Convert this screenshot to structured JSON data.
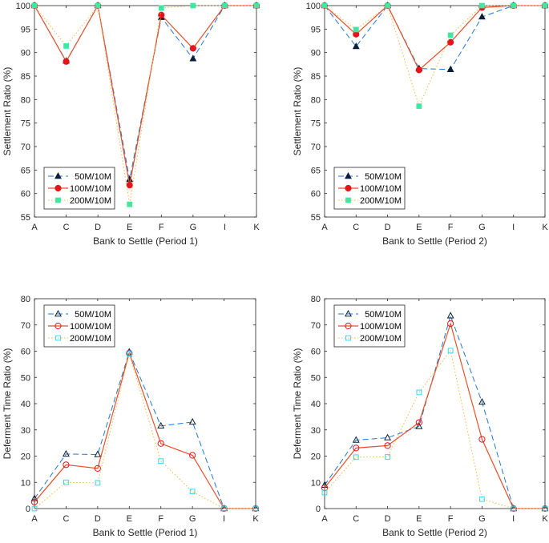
{
  "colors": {
    "series_50M": "#1f77d4",
    "series_50M_marker": "#0b1f3a",
    "series_100M": "#e8502a",
    "series_100M_marker": "#e4141b",
    "series_200M": "#f0b84a",
    "series_200M_marker": "#3ee8a0",
    "series_200M_marker_open": "#35d8e8",
    "axis": "#262626"
  },
  "chart_data": [
    {
      "type": "line",
      "id": "settlement-period-1",
      "categories": [
        "A",
        "C",
        "D",
        "E",
        "F",
        "G",
        "I",
        "K"
      ],
      "xlabel": "Bank to Settle (Period 1)",
      "ylabel": "Settlement Ratio (%)",
      "ylim": [
        55,
        100
      ],
      "yticks": [
        55,
        60,
        65,
        70,
        75,
        80,
        85,
        90,
        95,
        100
      ],
      "marker_fill": "filled",
      "legend_position": "lower-left",
      "series": [
        {
          "name": "50M/10M",
          "legend_label": " 50M/10M",
          "values": [
            100,
            88.2,
            100,
            63.0,
            97.5,
            88.7,
            100,
            100
          ]
        },
        {
          "name": "100M/10M",
          "legend_label": "100M/10M",
          "values": [
            100,
            88.1,
            100,
            61.8,
            98.0,
            90.9,
            100,
            100
          ]
        },
        {
          "name": "200M/10M",
          "legend_label": "200M/10M",
          "values": [
            100,
            91.4,
            100,
            57.7,
            99.5,
            100,
            100,
            100
          ]
        }
      ]
    },
    {
      "type": "line",
      "id": "settlement-period-2",
      "categories": [
        "A",
        "C",
        "D",
        "E",
        "F",
        "G",
        "I",
        "K"
      ],
      "xlabel": "Bank to Settle (Period 2)",
      "ylabel": "Settlement Ratio (%)",
      "ylim": [
        55,
        100
      ],
      "yticks": [
        55,
        60,
        65,
        70,
        75,
        80,
        85,
        90,
        95,
        100
      ],
      "marker_fill": "filled",
      "legend_position": "lower-left",
      "series": [
        {
          "name": "50M/10M",
          "legend_label": " 50M/10M",
          "values": [
            100,
            91.3,
            100,
            86.6,
            86.4,
            97.6,
            100,
            100
          ]
        },
        {
          "name": "100M/10M",
          "legend_label": "100M/10M",
          "values": [
            100,
            93.9,
            100,
            86.3,
            92.2,
            99.6,
            100,
            100
          ]
        },
        {
          "name": "200M/10M",
          "legend_label": "200M/10M",
          "values": [
            100,
            94.9,
            100,
            78.6,
            93.7,
            100,
            100,
            100
          ]
        }
      ]
    },
    {
      "type": "line",
      "id": "deferment-period-1",
      "categories": [
        "A",
        "C",
        "D",
        "E",
        "F",
        "G",
        "I",
        "K"
      ],
      "xlabel": "Bank to Settle (Period 1)",
      "ylabel": "Deferment Time Ratio (%)",
      "ylim": [
        0,
        80
      ],
      "yticks": [
        0,
        10,
        20,
        30,
        40,
        50,
        60,
        70,
        80
      ],
      "marker_fill": "open",
      "legend_position": "upper-left",
      "series": [
        {
          "name": "50M/10M",
          "legend_label": " 50M/10M",
          "values": [
            3.8,
            20.8,
            20.6,
            59.7,
            31.5,
            33.0,
            0,
            0
          ]
        },
        {
          "name": "100M/10M",
          "legend_label": "100M/10M",
          "values": [
            2.5,
            16.7,
            15.3,
            59.3,
            24.8,
            20.3,
            0,
            0
          ]
        },
        {
          "name": "200M/10M",
          "legend_label": "200M/10M",
          "values": [
            0,
            10.0,
            9.8,
            59.0,
            18.1,
            6.5,
            0,
            0
          ]
        }
      ]
    },
    {
      "type": "line",
      "id": "deferment-period-2",
      "categories": [
        "A",
        "C",
        "D",
        "E",
        "F",
        "G",
        "I",
        "K"
      ],
      "xlabel": "Bank to Settle (Period 2)",
      "ylabel": "Deferment Time Ratio (%)",
      "ylim": [
        0,
        80
      ],
      "yticks": [
        0,
        10,
        20,
        30,
        40,
        50,
        60,
        70,
        80
      ],
      "marker_fill": "open",
      "legend_position": "upper-left",
      "series": [
        {
          "name": "50M/10M",
          "legend_label": " 50M/10M",
          "values": [
            8.9,
            26.1,
            27.0,
            31.3,
            73.5,
            40.6,
            0,
            0
          ]
        },
        {
          "name": "100M/10M",
          "legend_label": "100M/10M",
          "values": [
            7.9,
            23.1,
            24.0,
            32.8,
            70.5,
            26.4,
            0,
            0
          ]
        },
        {
          "name": "200M/10M",
          "legend_label": "200M/10M",
          "values": [
            6.1,
            19.6,
            19.7,
            44.3,
            60.2,
            3.6,
            0,
            0
          ]
        }
      ]
    }
  ]
}
